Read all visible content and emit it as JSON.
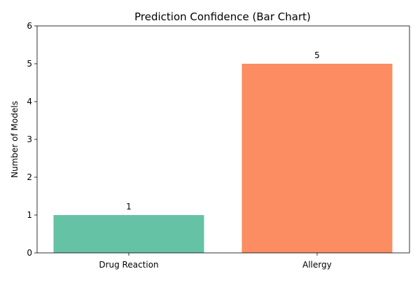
{
  "chart_data": {
    "type": "bar",
    "title": "Prediction Confidence (Bar Chart)",
    "xlabel": "",
    "ylabel": "Number of Models",
    "categories": [
      "Drug Reaction",
      "Allergy"
    ],
    "values": [
      1,
      5
    ],
    "data_labels": [
      "1",
      "5"
    ],
    "colors": [
      "#66c2a5",
      "#fc8d62"
    ],
    "ylim": [
      0,
      6
    ],
    "yticks": [
      0,
      1,
      2,
      3,
      4,
      5,
      6
    ],
    "grid": false,
    "legend": "none"
  }
}
